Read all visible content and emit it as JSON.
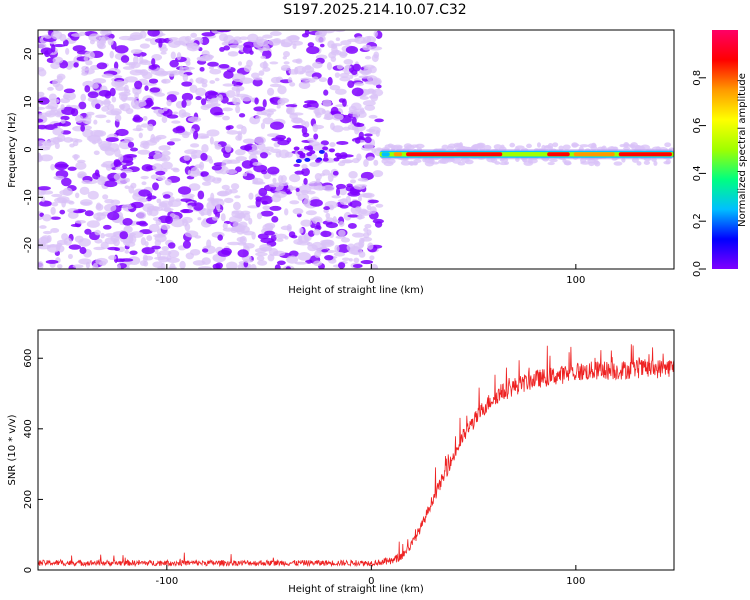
{
  "title": "S197.2025.214.10.07.C32",
  "colors": {
    "snr_line": "#ee2222",
    "scatter_main": "#7f00ff",
    "scatter_light": "#d9c2f7",
    "colorbar": [
      "#7f00ff",
      "#0000ff",
      "#00bfff",
      "#00ff80",
      "#a0ff00",
      "#ffff00",
      "#ff9900",
      "#ff0000",
      "#ff0066"
    ]
  },
  "chart_data": [
    {
      "type": "heatmap",
      "xlabel": "Height of straight line (km)",
      "ylabel": "Frequency (Hz)",
      "xlim": [
        -163,
        148
      ],
      "ylim": [
        -25,
        25
      ],
      "xticks": [
        -100,
        0,
        100
      ],
      "yticks": [
        -20,
        -10,
        0,
        10,
        20
      ],
      "colorbar": {
        "label": "Normalized spectral amplitude",
        "range": [
          0,
          1
        ],
        "ticks": [
          "0.0",
          "0.2",
          "0.4",
          "0.6",
          "0.8"
        ]
      },
      "features": {
        "noise_region_x": [
          -163,
          4
        ],
        "noise_region_amplitude": "low (0.0–0.15)",
        "tone_frequency_hz": -1,
        "tone_x_range": [
          4,
          148
        ],
        "tone_amplitude_segments": [
          {
            "x": [
              4,
              10
            ],
            "level": 0.3
          },
          {
            "x": [
              10,
              16
            ],
            "level": 0.7
          },
          {
            "x": [
              16,
              65
            ],
            "level": 0.9
          },
          {
            "x": [
              65,
              85
            ],
            "level": 0.5
          },
          {
            "x": [
              85,
              98
            ],
            "level": 0.9
          },
          {
            "x": [
              98,
              120
            ],
            "level": 0.7
          },
          {
            "x": [
              120,
              148
            ],
            "level": 0.9
          }
        ]
      }
    },
    {
      "type": "line",
      "xlabel": "Height of straight line (km)",
      "ylabel": "SNR (10 * v/v)",
      "xlim": [
        -163,
        148
      ],
      "ylim": [
        0,
        680
      ],
      "xticks": [
        -100,
        0,
        100
      ],
      "yticks": [
        0,
        200,
        400,
        600
      ],
      "series": [
        {
          "x": [
            -163,
            -140,
            -120,
            -100,
            -80,
            -60,
            -40,
            -20,
            0,
            10,
            15,
            20,
            25,
            30,
            35,
            40,
            45,
            50,
            55,
            60,
            65,
            70,
            75,
            80,
            85,
            90,
            95,
            100,
            110,
            120,
            130,
            140,
            148
          ],
          "y": [
            20,
            20,
            20,
            20,
            20,
            20,
            20,
            20,
            20,
            25,
            40,
            75,
            130,
            200,
            260,
            320,
            380,
            420,
            460,
            490,
            505,
            520,
            530,
            540,
            545,
            550,
            555,
            560,
            565,
            565,
            570,
            570,
            575
          ]
        }
      ]
    }
  ]
}
